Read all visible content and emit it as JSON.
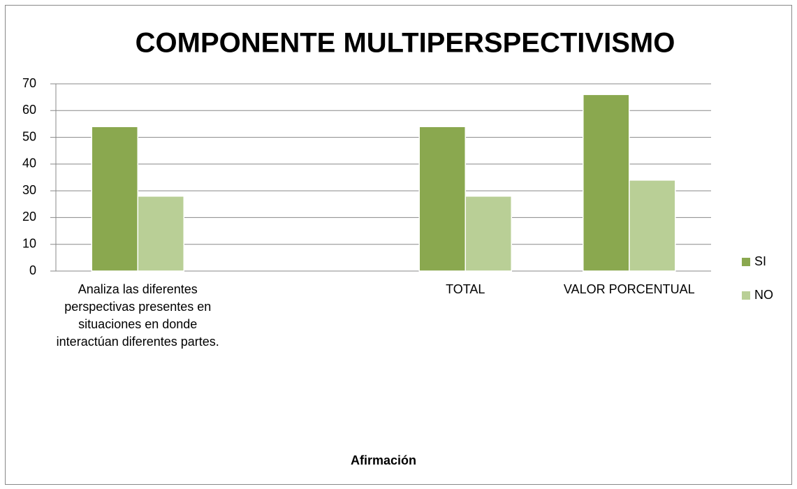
{
  "chart_data": {
    "type": "bar",
    "title": "COMPONENTE MULTIPERSPECTIVISMO",
    "x_label": "Afirmación",
    "categories": [
      "Analiza las diferentes perspectivas presentes en situaciones en donde interactúan diferentes partes.",
      null,
      "TOTAL",
      "VALOR PORCENTUAL"
    ],
    "series": [
      {
        "name": "SI",
        "color": "#8aa84f",
        "values": [
          54,
          null,
          54,
          66
        ]
      },
      {
        "name": "NO",
        "color": "#b9cf96",
        "values": [
          28,
          null,
          28,
          34
        ]
      }
    ],
    "ylim": [
      0,
      70
    ],
    "yticks": [
      0,
      10,
      20,
      30,
      40,
      50,
      60,
      70
    ],
    "grid": true,
    "legend": "right"
  }
}
